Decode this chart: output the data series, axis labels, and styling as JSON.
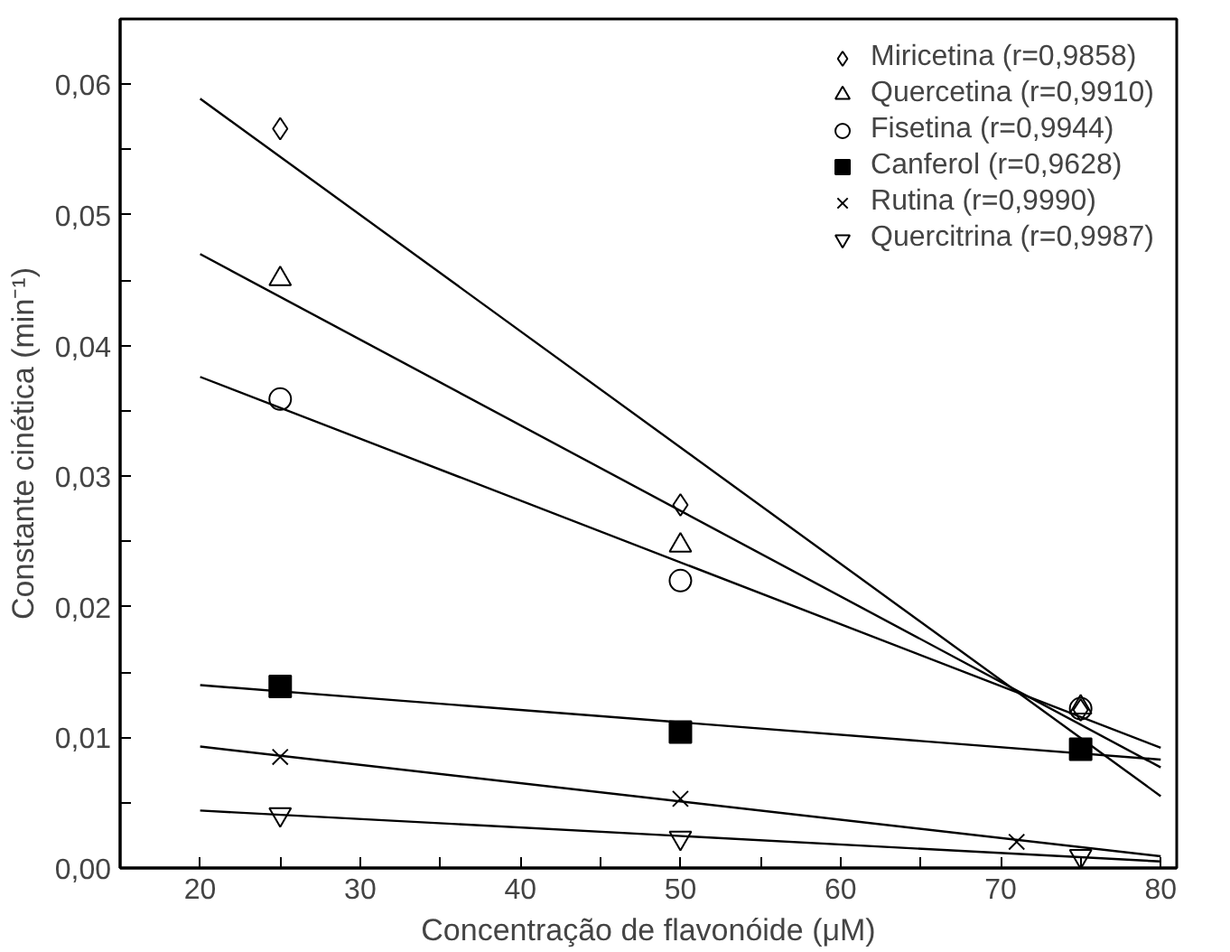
{
  "chart_data": {
    "type": "scatter",
    "xlabel": "Concentração de flavonóide (μM)",
    "ylabel": "Constante cinética (min⁻¹)",
    "xlim": [
      15,
      81
    ],
    "ylim": [
      0,
      0.065
    ],
    "xticks": [
      20,
      {
        "value": 25,
        "label": null
      },
      30,
      {
        "value": 35,
        "label": null
      },
      40,
      {
        "value": 45,
        "label": null
      },
      50,
      {
        "value": 55,
        "label": null
      },
      60,
      {
        "value": 65,
        "label": null
      },
      70,
      {
        "value": 75,
        "label": null
      },
      80
    ],
    "yticks": [
      {
        "value": 0,
        "label": "0,00"
      },
      {
        "value": 0.005,
        "label": null
      },
      {
        "value": 0.01,
        "label": "0,01"
      },
      {
        "value": 0.015,
        "label": null
      },
      {
        "value": 0.02,
        "label": "0,02"
      },
      {
        "value": 0.025,
        "label": null
      },
      {
        "value": 0.03,
        "label": "0,03"
      },
      {
        "value": 0.035,
        "label": null
      },
      {
        "value": 0.04,
        "label": "0,04"
      },
      {
        "value": 0.045,
        "label": null
      },
      {
        "value": 0.05,
        "label": "0,05"
      },
      {
        "value": 0.055,
        "label": null
      },
      {
        "value": 0.06,
        "label": "0,06"
      }
    ],
    "grid": false,
    "legend": "top right",
    "series": [
      {
        "name": "Miricetina (r=0,9858)",
        "color": "#000000",
        "marker": "diamond",
        "x": [
          25,
          50,
          75
        ],
        "values": [
          0.0566,
          0.0278,
          0.0121
        ]
      },
      {
        "name": "Quercetina (r=0,9910)",
        "color": "#000000",
        "marker": "triangle",
        "x": [
          25,
          50,
          75
        ],
        "values": [
          0.0451,
          0.0247,
          0.0123
        ]
      },
      {
        "name": "Fisetina (r=0,9944)",
        "color": "#000000",
        "marker": "circle",
        "x": [
          25,
          50,
          75
        ],
        "values": [
          0.0359,
          0.022,
          0.0122
        ]
      },
      {
        "name": "Canferol (r=0,9628)",
        "color": "#000000",
        "marker": "square",
        "x": [
          25,
          50,
          75
        ],
        "values": [
          0.0139,
          0.0104,
          0.0091
        ]
      },
      {
        "name": "Rutina (r=0,9990)",
        "color": "#000000",
        "marker": "x",
        "x": [
          25,
          50,
          71
        ],
        "values": [
          0.0085,
          0.0053,
          0.002
        ]
      },
      {
        "name": "Quercitrina (r=0,9987)",
        "color": "#000000",
        "x": [
          25,
          50,
          75
        ],
        "values": [
          0.0041,
          0.0023,
          0.0009
        ]
      },
      {
        "type": "line",
        "color": "#000000",
        "x": [
          20,
          80
        ],
        "values": [
          0.0589,
          0.0055
        ]
      },
      {
        "type": "line",
        "color": "#000000",
        "x": [
          20,
          80
        ],
        "values": [
          0.047,
          0.0077
        ]
      },
      {
        "type": "line",
        "color": "#000000",
        "x": [
          20,
          80
        ],
        "values": [
          0.0376,
          0.0092
        ]
      },
      {
        "type": "line",
        "color": "#000000",
        "x": [
          20,
          80
        ],
        "values": [
          0.014,
          0.0083
        ]
      },
      {
        "type": "line",
        "color": "#000000",
        "x": [
          20,
          80
        ],
        "values": [
          0.0093,
          0.0009
        ]
      },
      {
        "type": "line",
        "color": "#000000",
        "x": [
          20,
          80
        ],
        "values": [
          0.0044,
          0.0005
        ]
      }
    ]
  }
}
